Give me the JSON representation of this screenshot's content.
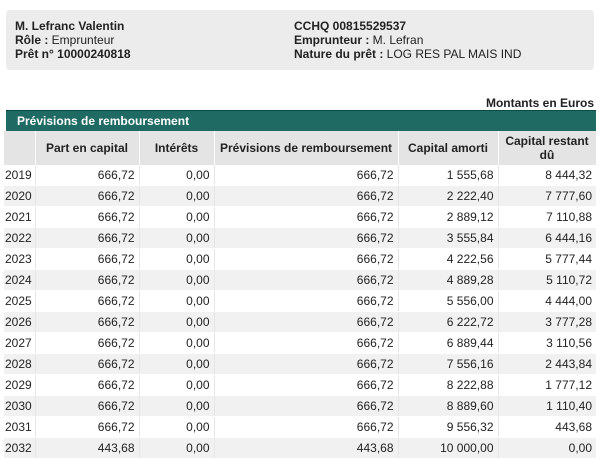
{
  "header": {
    "client_name": "M. Lefranc Valentin",
    "role_label": "Rôle : ",
    "role_value": "Emprunteur",
    "loan_label": "Prêt n° 10000240818",
    "cchq": "CCHQ 00815529537",
    "borrower_label": "Emprunteur : ",
    "borrower_value": "M. Lefran",
    "nature_label": "Nature du prêt : ",
    "nature_value": "LOG RES PAL MAIS IND"
  },
  "units_label": "Montants en Euros",
  "section_title": "Prévisions de remboursement",
  "table": {
    "columns": [
      "",
      "Part en capital",
      "Intérêts",
      "Prévisions de remboursement",
      "Capital amorti",
      "Capital restant dû"
    ],
    "rows": [
      [
        "2019",
        "666,72",
        "0,00",
        "666,72",
        "1 555,68",
        "8 444,32"
      ],
      [
        "2020",
        "666,72",
        "0,00",
        "666,72",
        "2 222,40",
        "7 777,60"
      ],
      [
        "2021",
        "666,72",
        "0,00",
        "666,72",
        "2 889,12",
        "7 110,88"
      ],
      [
        "2022",
        "666,72",
        "0,00",
        "666,72",
        "3 555,84",
        "6 444,16"
      ],
      [
        "2023",
        "666,72",
        "0,00",
        "666,72",
        "4 222,56",
        "5 777,44"
      ],
      [
        "2024",
        "666,72",
        "0,00",
        "666,72",
        "4 889,28",
        "5 110,72"
      ],
      [
        "2025",
        "666,72",
        "0,00",
        "666,72",
        "5 556,00",
        "4 444,00"
      ],
      [
        "2026",
        "666,72",
        "0,00",
        "666,72",
        "6 222,72",
        "3 777,28"
      ],
      [
        "2027",
        "666,72",
        "0,00",
        "666,72",
        "6 889,44",
        "3 110,56"
      ],
      [
        "2028",
        "666,72",
        "0,00",
        "666,72",
        "7 556,16",
        "2 443,84"
      ],
      [
        "2029",
        "666,72",
        "0,00",
        "666,72",
        "8 222,88",
        "1 777,12"
      ],
      [
        "2030",
        "666,72",
        "0,00",
        "666,72",
        "8 889,60",
        "1 110,40"
      ],
      [
        "2031",
        "666,72",
        "0,00",
        "666,72",
        "9 556,32",
        "443,68"
      ],
      [
        "2032",
        "443,68",
        "0,00",
        "443,68",
        "10 000,00",
        "0,00"
      ]
    ]
  }
}
